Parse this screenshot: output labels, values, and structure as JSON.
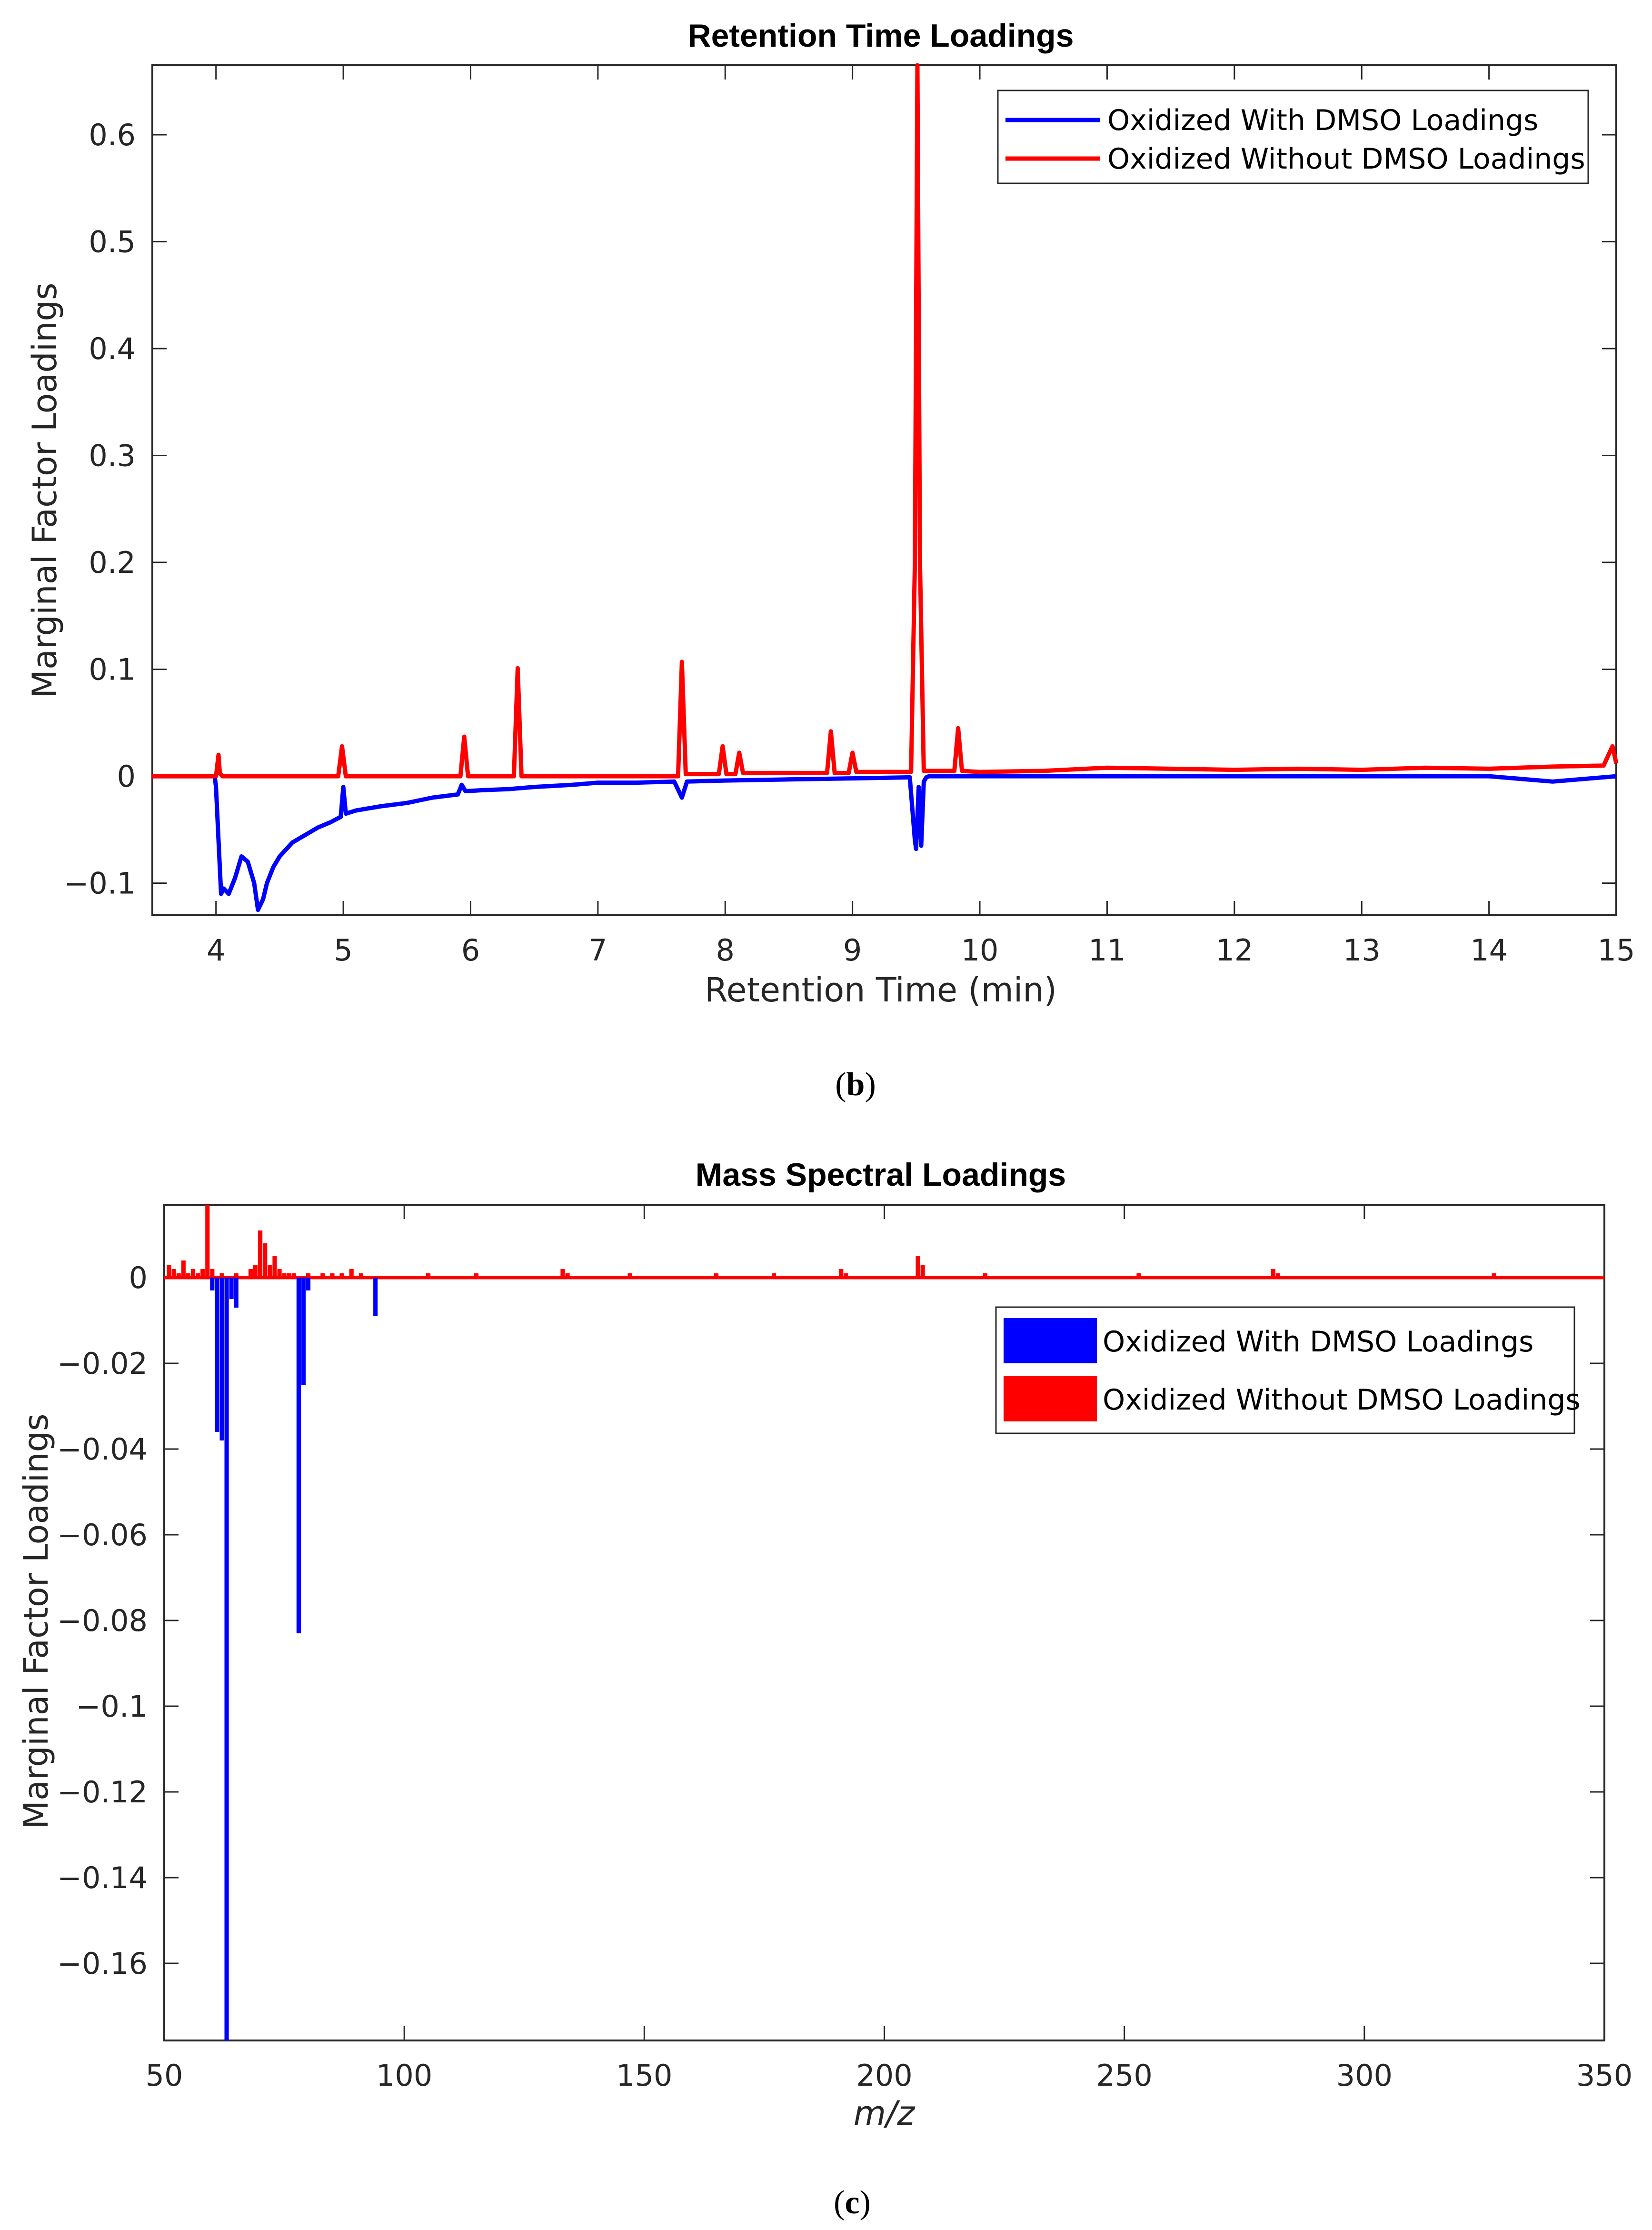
{
  "chart_data": [
    {
      "id": "b",
      "type": "line",
      "title": "Retention Time Loadings",
      "xlabel": "Retention Time (min)",
      "ylabel": "Marginal Factor Loadings",
      "xlim": [
        3.5,
        15
      ],
      "ylim": [
        -0.13,
        0.665
      ],
      "xticks": [
        4,
        5,
        6,
        7,
        8,
        9,
        10,
        11,
        12,
        13,
        14,
        15
      ],
      "yticks": [
        -0.1,
        0,
        0.1,
        0.2,
        0.3,
        0.4,
        0.5,
        0.6
      ],
      "ytick_labels": [
        "−0.1",
        "0",
        "0.1",
        "0.2",
        "0.3",
        "0.4",
        "0.5",
        "0.6"
      ],
      "legend_position": "top-right",
      "caption": "b",
      "series": [
        {
          "name": "Oxidized With DMSO Loadings",
          "color": "#0000ff",
          "x": [
            3.5,
            3.99,
            4.0,
            4.02,
            4.04,
            4.06,
            4.1,
            4.15,
            4.2,
            4.25,
            4.3,
            4.33,
            4.37,
            4.4,
            4.45,
            4.5,
            4.6,
            4.7,
            4.8,
            4.9,
            4.98,
            5.0,
            5.02,
            5.1,
            5.3,
            5.5,
            5.7,
            5.9,
            5.93,
            5.96,
            6.1,
            6.3,
            6.5,
            6.8,
            7.0,
            7.3,
            7.6,
            7.66,
            7.7,
            8.0,
            8.5,
            9.0,
            9.45,
            9.49,
            9.5,
            9.52,
            9.54,
            9.56,
            9.58,
            9.6,
            10.0,
            10.5,
            11.0,
            12.0,
            13.0,
            14.0,
            14.5,
            15.0
          ],
          "y": [
            0.0,
            0.0,
            -0.01,
            -0.06,
            -0.11,
            -0.105,
            -0.11,
            -0.095,
            -0.075,
            -0.08,
            -0.1,
            -0.125,
            -0.115,
            -0.1,
            -0.085,
            -0.075,
            -0.062,
            -0.055,
            -0.048,
            -0.043,
            -0.038,
            -0.01,
            -0.035,
            -0.032,
            -0.028,
            -0.025,
            -0.02,
            -0.017,
            -0.008,
            -0.014,
            -0.013,
            -0.012,
            -0.01,
            -0.008,
            -0.006,
            -0.006,
            -0.005,
            -0.02,
            -0.005,
            -0.004,
            -0.003,
            -0.002,
            -0.001,
            -0.06,
            -0.068,
            -0.01,
            -0.065,
            -0.005,
            -0.001,
            0.0,
            0.0,
            0.0,
            0.0,
            0.0,
            0.0,
            0.0,
            -0.005,
            0.0
          ]
        },
        {
          "name": "Oxidized Without DMSO Loadings",
          "color": "#ff0000",
          "x": [
            3.5,
            4.0,
            4.02,
            4.03,
            4.05,
            4.96,
            4.99,
            5.02,
            5.92,
            5.95,
            5.98,
            6.34,
            6.37,
            6.4,
            7.63,
            7.66,
            7.69,
            7.95,
            7.98,
            8.01,
            8.08,
            8.11,
            8.14,
            8.8,
            8.83,
            8.86,
            8.97,
            9.0,
            9.03,
            9.46,
            9.49,
            9.51,
            9.53,
            9.56,
            9.8,
            9.83,
            9.86,
            10.0,
            10.5,
            11.0,
            11.5,
            12.0,
            12.5,
            13.0,
            13.5,
            14.0,
            14.5,
            14.9,
            14.97,
            15.0
          ],
          "y": [
            0.0,
            0.0,
            0.02,
            0.003,
            0.0,
            0.0,
            0.028,
            0.0,
            0.0,
            0.037,
            0.0,
            0.0,
            0.101,
            0.0,
            0.0,
            0.107,
            0.002,
            0.002,
            0.028,
            0.002,
            0.002,
            0.022,
            0.003,
            0.003,
            0.042,
            0.003,
            0.003,
            0.022,
            0.004,
            0.004,
            0.2,
            0.665,
            0.2,
            0.005,
            0.005,
            0.045,
            0.005,
            0.004,
            0.005,
            0.008,
            0.007,
            0.006,
            0.007,
            0.006,
            0.008,
            0.007,
            0.009,
            0.01,
            0.028,
            0.012
          ]
        }
      ]
    },
    {
      "id": "c",
      "type": "bar",
      "title": "Mass Spectral Loadings",
      "xlabel": "m/z",
      "ylabel": "Marginal Factor Loadings",
      "xlim": [
        50,
        350
      ],
      "ylim": [
        -0.178,
        0.017
      ],
      "xticks": [
        50,
        100,
        150,
        200,
        250,
        300,
        350
      ],
      "yticks": [
        -0.16,
        -0.14,
        -0.12,
        -0.1,
        -0.08,
        -0.06,
        -0.04,
        -0.02,
        0
      ],
      "ytick_labels": [
        "−0.16",
        "−0.14",
        "−0.12",
        "−0.1",
        "−0.08",
        "−0.06",
        "−0.04",
        "−0.02",
        "0"
      ],
      "legend_position": "right",
      "caption": "c",
      "series": [
        {
          "name": "Oxidized With DMSO Loadings",
          "color": "#0000ff",
          "x": [
            60,
            61,
            62,
            63,
            64,
            65,
            78,
            79,
            80,
            94
          ],
          "y": [
            -0.003,
            -0.036,
            -0.038,
            -0.178,
            -0.005,
            -0.007,
            -0.083,
            -0.025,
            -0.003,
            -0.009
          ]
        },
        {
          "name": "Oxidized Without DMSO Loadings",
          "color": "#ff0000",
          "x": [
            51,
            52,
            53,
            54,
            55,
            56,
            57,
            58,
            59,
            60,
            62,
            65,
            68,
            69,
            70,
            71,
            72,
            73,
            74,
            75,
            76,
            77,
            80,
            83,
            85,
            87,
            89,
            91,
            105,
            115,
            133,
            134,
            147,
            165,
            177,
            191,
            192,
            207,
            208,
            221,
            253,
            281,
            282,
            327
          ],
          "y": [
            0.003,
            0.002,
            0.001,
            0.004,
            0.001,
            0.002,
            0.001,
            0.002,
            0.017,
            0.002,
            0.001,
            0.001,
            0.002,
            0.003,
            0.011,
            0.008,
            0.003,
            0.005,
            0.002,
            0.001,
            0.001,
            0.001,
            0.001,
            0.001,
            0.001,
            0.001,
            0.002,
            0.001,
            0.001,
            0.001,
            0.002,
            0.001,
            0.001,
            0.001,
            0.001,
            0.002,
            0.001,
            0.005,
            0.003,
            0.001,
            0.001,
            0.002,
            0.001,
            0.001
          ]
        }
      ]
    }
  ]
}
